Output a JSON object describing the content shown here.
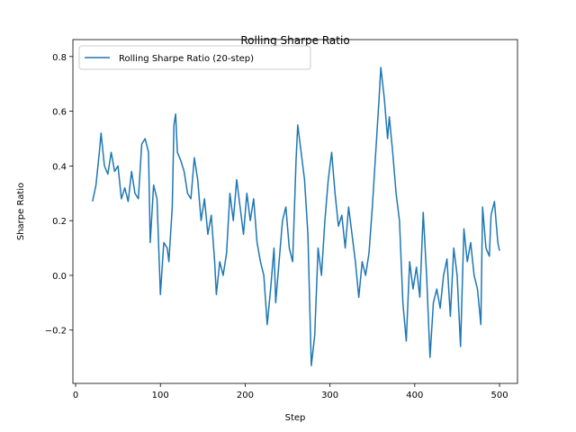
{
  "chart_data": {
    "type": "line",
    "title": "Rolling Sharpe Ratio",
    "xlabel": "Step",
    "ylabel": "Sharpe Ratio",
    "x": [
      20,
      24,
      28,
      30,
      34,
      38,
      42,
      46,
      50,
      54,
      58,
      62,
      66,
      70,
      74,
      78,
      82,
      86,
      88,
      92,
      96,
      100,
      104,
      108,
      110,
      114,
      116,
      118,
      120,
      124,
      128,
      132,
      136,
      140,
      144,
      148,
      152,
      156,
      160,
      164,
      166,
      170,
      174,
      178,
      182,
      186,
      190,
      194,
      198,
      202,
      206,
      210,
      214,
      218,
      222,
      226,
      230,
      234,
      236,
      240,
      244,
      248,
      252,
      256,
      260,
      262,
      266,
      270,
      274,
      278,
      282,
      286,
      290,
      294,
      298,
      302,
      306,
      310,
      314,
      318,
      322,
      326,
      330,
      334,
      338,
      342,
      346,
      350,
      354,
      358,
      360,
      364,
      368,
      370,
      374,
      378,
      382,
      386,
      390,
      394,
      398,
      402,
      406,
      410,
      414,
      418,
      422,
      426,
      430,
      434,
      438,
      442,
      446,
      450,
      454,
      458,
      462,
      466,
      470,
      474,
      478,
      480,
      484,
      488,
      490,
      494,
      498,
      500
    ],
    "series": [
      {
        "name": "Rolling Sharpe Ratio (20-step)",
        "color": "#1f77b4",
        "values": [
          0.27,
          0.33,
          0.45,
          0.52,
          0.4,
          0.37,
          0.45,
          0.38,
          0.4,
          0.28,
          0.32,
          0.27,
          0.38,
          0.3,
          0.28,
          0.48,
          0.5,
          0.45,
          0.12,
          0.33,
          0.28,
          -0.07,
          0.12,
          0.1,
          0.05,
          0.25,
          0.55,
          0.59,
          0.45,
          0.42,
          0.38,
          0.3,
          0.28,
          0.43,
          0.35,
          0.2,
          0.28,
          0.15,
          0.22,
          0.05,
          -0.07,
          0.05,
          0.0,
          0.08,
          0.3,
          0.2,
          0.35,
          0.25,
          0.15,
          0.3,
          0.2,
          0.28,
          0.12,
          0.05,
          0.0,
          -0.18,
          -0.05,
          0.1,
          -0.1,
          0.05,
          0.2,
          0.25,
          0.1,
          0.05,
          0.42,
          0.55,
          0.45,
          0.35,
          0.15,
          -0.33,
          -0.22,
          0.1,
          0.0,
          0.2,
          0.35,
          0.45,
          0.3,
          0.18,
          0.22,
          0.1,
          0.25,
          0.15,
          0.05,
          -0.08,
          0.05,
          0.0,
          0.08,
          0.25,
          0.45,
          0.65,
          0.76,
          0.65,
          0.5,
          0.58,
          0.45,
          0.3,
          0.2,
          -0.1,
          -0.24,
          0.05,
          -0.05,
          0.03,
          -0.08,
          0.23,
          0.0,
          -0.3,
          -0.1,
          -0.05,
          -0.12,
          0.0,
          0.06,
          -0.15,
          0.1,
          0.0,
          -0.26,
          0.17,
          0.05,
          0.12,
          0.0,
          -0.05,
          -0.18,
          0.25,
          0.1,
          0.07,
          0.22,
          0.27,
          0.12,
          0.09
        ]
      }
    ],
    "xlim": [
      -3.2,
      521.2
    ],
    "ylim": [
      -0.395,
      0.862
    ],
    "xticks": [
      0,
      100,
      200,
      300,
      400,
      500
    ],
    "yticks": [
      {
        "value": -0.2,
        "label": "−0.2"
      },
      {
        "value": 0.0,
        "label": "0.0"
      },
      0.2,
      0.4,
      0.6,
      0.8
    ],
    "legend": "upper left"
  }
}
